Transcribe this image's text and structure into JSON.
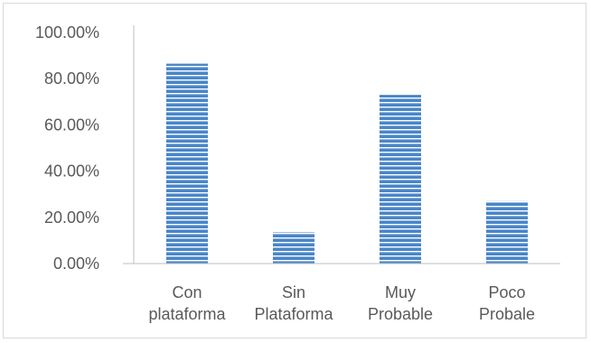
{
  "chart_data": {
    "type": "bar",
    "categories": [
      [
        "Con",
        "plataforma"
      ],
      [
        "Sin",
        "Plataforma"
      ],
      [
        "Muy",
        "Probable"
      ],
      [
        "Poco",
        "Probale"
      ]
    ],
    "values": [
      0.865,
      0.135,
      0.73,
      0.27
    ],
    "ylim": [
      0,
      1
    ],
    "yticks": [
      "0.00%",
      "20.00%",
      "40.00%",
      "60.00%",
      "80.00%",
      "100.00%"
    ],
    "bar_color": "#4a86c8",
    "bar_stripe_color": "#ffffff",
    "axis_color": "#bfbfbf",
    "grid": false,
    "legend": "none"
  }
}
